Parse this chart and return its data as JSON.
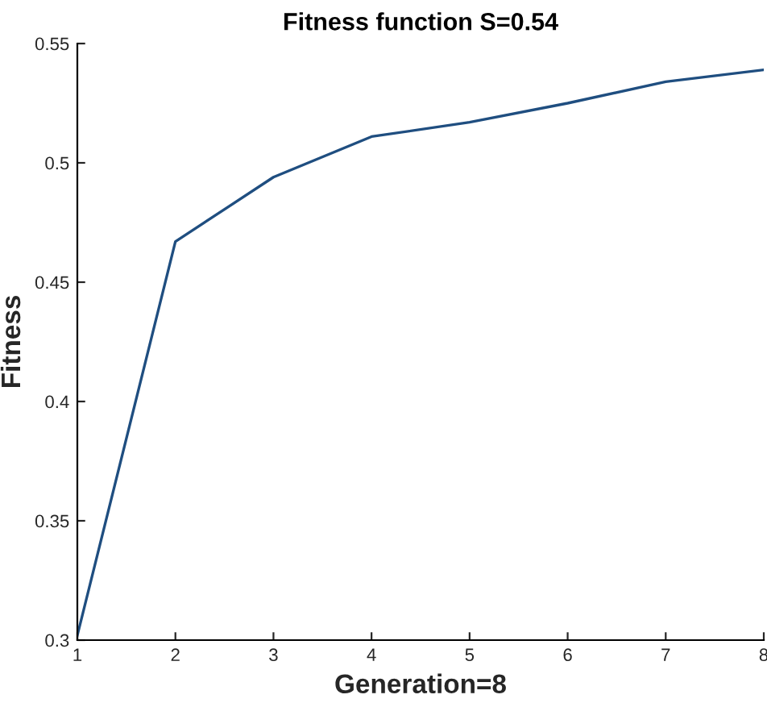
{
  "chart_data": {
    "type": "line",
    "title": "Fitness function S=0.54",
    "xlabel": "Generation=8",
    "ylabel": "Fitness",
    "x": [
      1,
      2,
      3,
      4,
      5,
      6,
      7,
      8
    ],
    "series": [
      {
        "color": "#1f4e80",
        "values": [
          0.302,
          0.467,
          0.494,
          0.511,
          0.517,
          0.525,
          0.534,
          0.539
        ]
      }
    ],
    "xlim": [
      1,
      8
    ],
    "xticks": [
      1,
      2,
      3,
      4,
      5,
      6,
      7,
      8
    ],
    "ylim": [
      0.3,
      0.55
    ],
    "yticks": [
      0.3,
      0.35,
      0.4,
      0.45,
      0.5,
      0.55
    ],
    "grid": false,
    "legend": false
  }
}
